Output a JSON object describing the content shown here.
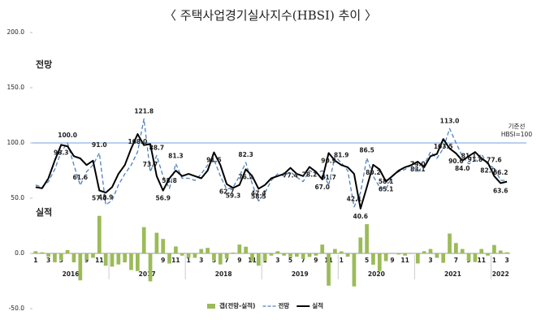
{
  "chart_data": {
    "type": "combo",
    "title": "〈 주택사업경기실사지수(HBSI) 추이 〉",
    "annotations": [
      "전망",
      "실적"
    ],
    "reference_line": {
      "value": 100,
      "label": "기준선",
      "sublabel": "HBSI=100",
      "color": "#8eb4e3"
    },
    "categories": [
      "1",
      null,
      "3",
      null,
      "5",
      null,
      "7",
      null,
      "9",
      null,
      "11",
      null,
      "1",
      null,
      "3",
      null,
      "5",
      null,
      "7",
      null,
      "9",
      null,
      "11",
      null,
      "1",
      null,
      "3",
      null,
      "5",
      null,
      "7",
      null,
      "9",
      null,
      "11",
      null,
      "1",
      null,
      "3",
      null,
      "5",
      null,
      "7",
      null,
      "9",
      null,
      "11",
      null,
      "1",
      null,
      "3",
      null,
      "5",
      null,
      "7",
      null,
      "9",
      null,
      "11",
      null,
      "1",
      null,
      "3",
      null,
      "5",
      null,
      "7",
      null,
      "9",
      null,
      "11",
      null,
      "1",
      null,
      "3"
    ],
    "years": [
      "2016",
      "2017",
      "2018",
      "2019",
      "2020",
      "2021",
      "2022"
    ],
    "ylim": [
      -50,
      200
    ],
    "yticks": [
      {
        "value": -50,
        "label": "-50.0"
      },
      {
        "value": 0,
        "label": "0.0"
      },
      {
        "value": 50,
        "label": "50.0"
      },
      {
        "value": 100,
        "label": "100.0"
      },
      {
        "value": 150,
        "label": "150.0"
      },
      {
        "value": 200,
        "label": "200.0"
      }
    ],
    "grid": false,
    "legend": "bottom",
    "series": [
      {
        "name": "갭(전망-실적)",
        "type": "bar",
        "color": "#9bbb59",
        "values": [
          2,
          1,
          -3,
          -8,
          -6.3,
          3,
          -8,
          -24.4,
          -6,
          -4,
          34,
          -11.1,
          -12,
          -10,
          -8,
          -15,
          -16,
          23.8,
          -25.3,
          18.7,
          13.1,
          -9.2,
          6.3,
          -2,
          -4,
          -4,
          4,
          5,
          -6.5,
          -10,
          -4.7,
          0.7,
          8,
          6.1,
          -7,
          -11.1,
          -7,
          -2,
          2,
          -2,
          -3.4,
          -3,
          -5,
          -3.2,
          -2,
          8,
          -29.2,
          4,
          1.9,
          -3,
          -29.9,
          14.4,
          26.5,
          -10.2,
          -16,
          -7,
          0,
          -1,
          -2,
          0,
          -9.1,
          2,
          4,
          -4,
          -8.5,
          18,
          9.4,
          4,
          -6.9,
          -7.8,
          4,
          -2,
          7.6,
          2.6,
          1
        ]
      },
      {
        "name": "전망",
        "type": "line",
        "dashed": true,
        "color": "#4f81bd",
        "values": [
          62,
          60,
          65,
          76,
          92,
          100.0,
          80,
          61.6,
          74,
          80,
          91.0,
          43.9,
          48,
          62,
          72,
          80,
          92,
          121.8,
          73.7,
          88.7,
          70,
          58.8,
          81.3,
          68,
          68,
          66,
          72,
          80,
          85,
          70,
          58,
          60,
          70,
          82.3,
          63,
          47.4,
          55,
          66,
          72,
          70,
          74,
          69,
          65,
          75,
          72,
          75,
          61.7,
          88,
          81.9,
          75,
          42.1,
          55,
          86.5,
          70,
          60,
          58.1,
          70,
          74,
          76,
          80,
          74.0,
          80,
          92,
          86,
          95,
          113.0,
          100,
          88,
          81.1,
          84,
          90,
          80,
          77.6,
          66.2,
          66
        ],
        "value_labels": [
          null,
          null,
          null,
          null,
          null,
          "100.0",
          null,
          "61.6",
          null,
          null,
          "91.0",
          "43.9",
          null,
          null,
          null,
          null,
          null,
          "121.8",
          "73.7",
          "88.7",
          null,
          "58.8",
          "81.3",
          null,
          null,
          null,
          null,
          null,
          null,
          null,
          null,
          null,
          null,
          "82.3",
          null,
          "47.4",
          null,
          null,
          null,
          null,
          null,
          null,
          null,
          null,
          null,
          null,
          "61.7",
          null,
          "81.9",
          null,
          "42.1",
          null,
          "86.5",
          null,
          null,
          "58.1",
          null,
          null,
          null,
          null,
          "74.0",
          null,
          null,
          null,
          null,
          "113.0",
          null,
          null,
          "81.1",
          null,
          null,
          null,
          "77.6",
          "66.2",
          null
        ]
      },
      {
        "name": "실적",
        "type": "line",
        "dashed": false,
        "color": "#000000",
        "values": [
          60,
          59,
          68,
          84,
          98.3,
          97,
          88,
          86,
          80,
          84,
          57.0,
          55,
          60,
          72,
          80,
          95,
          108.0,
          98,
          99,
          70,
          56.9,
          68,
          75,
          70,
          72,
          70,
          68,
          75,
          91.5,
          80,
          62.7,
          59.3,
          62,
          76.2,
          70,
          58.5,
          62,
          68,
          70,
          72,
          77.4,
          72,
          70,
          78.2,
          74,
          67.0,
          90.9,
          84,
          80,
          78,
          72,
          40.6,
          60,
          80.2,
          76,
          65.1,
          70,
          75,
          78,
          80,
          83.1,
          78,
          88,
          90,
          103.5,
          95,
          90.6,
          84.0,
          88,
          91.8,
          86,
          82.0,
          70,
          63.6,
          65
        ],
        "value_labels": [
          null,
          null,
          null,
          null,
          "98.3",
          null,
          null,
          null,
          null,
          null,
          "57.0",
          null,
          null,
          null,
          null,
          null,
          "108.0",
          null,
          null,
          null,
          "56.9",
          null,
          null,
          null,
          null,
          null,
          null,
          null,
          "91.5",
          null,
          "62.7",
          "59.3",
          null,
          "76.2",
          null,
          "58.5",
          null,
          null,
          null,
          null,
          "77.4",
          null,
          null,
          "78.2",
          null,
          "67.0",
          "90.9",
          null,
          null,
          null,
          null,
          "40.6",
          null,
          "80.2",
          null,
          "65.1",
          null,
          null,
          null,
          null,
          "83.1",
          null,
          null,
          null,
          "103.5",
          null,
          "90.6",
          "84.0",
          null,
          "91.8",
          null,
          "82.0",
          null,
          "63.6",
          null
        ]
      }
    ]
  }
}
